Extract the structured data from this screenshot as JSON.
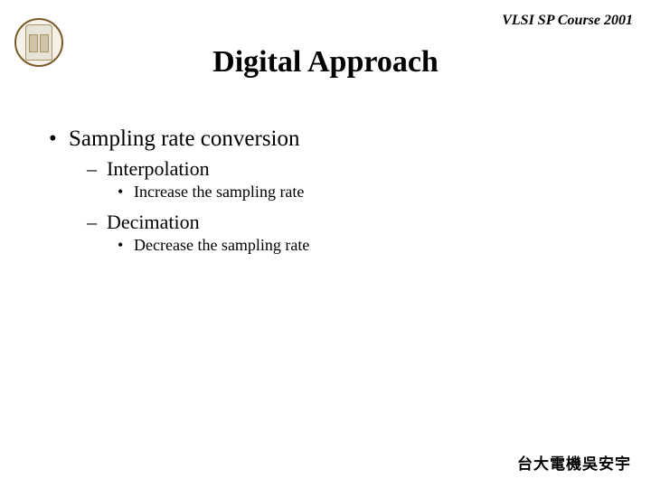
{
  "header": {
    "course": "VLSI SP Course 2001"
  },
  "title": "Digital Approach",
  "bullets": {
    "item1": {
      "label": "Sampling rate conversion",
      "sub1": {
        "label": "Interpolation",
        "detail": "Increase the sampling rate"
      },
      "sub2": {
        "label": "Decimation",
        "detail": "Decrease the sampling rate"
      }
    }
  },
  "footer": {
    "text": "台大電機吳安宇"
  },
  "style": {
    "page_bg": "#ffffff",
    "title_color": "#000000",
    "text_color": "#000000",
    "title_fontsize": 34,
    "body_fontsize": 25,
    "sub_fontsize": 22,
    "subsub_fontsize": 18,
    "font_family": "Times New Roman"
  }
}
